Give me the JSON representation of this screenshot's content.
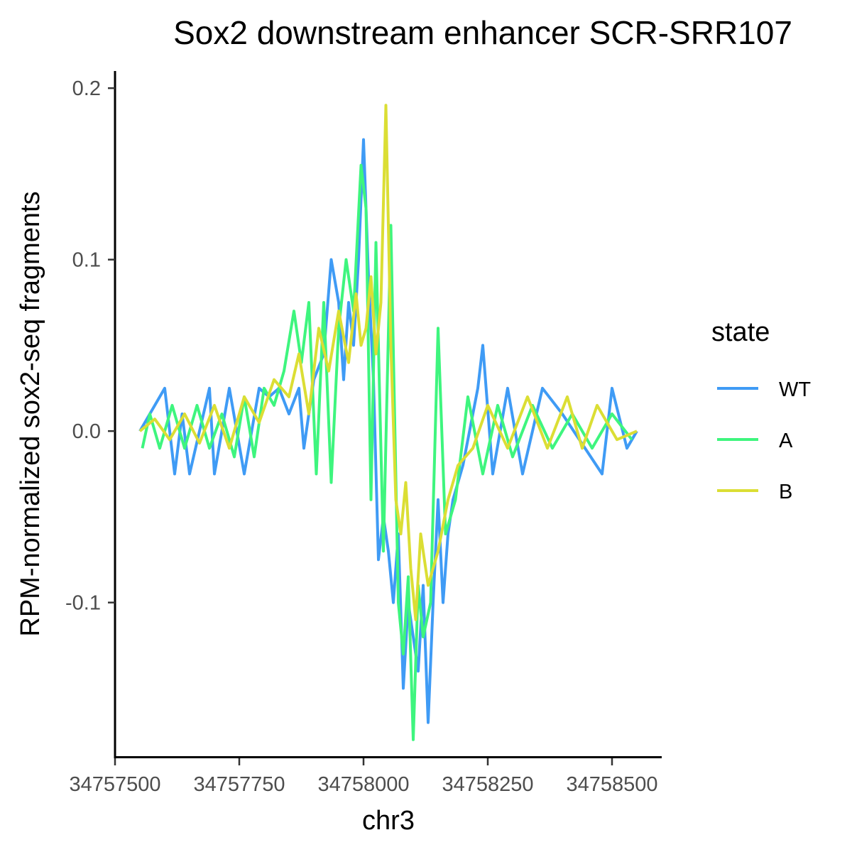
{
  "chart_data": {
    "type": "line",
    "title": "Sox2 downstream enhancer SCR-SRR107",
    "xlabel": "chr3",
    "ylabel": "RPM-normalized sox2-seq fragments",
    "xlim": [
      34757500,
      34758600
    ],
    "ylim": [
      -0.19,
      0.21
    ],
    "x_ticks": [
      {
        "value": 34757500,
        "label": "34757500"
      },
      {
        "value": 34757750,
        "label": "34757750"
      },
      {
        "value": 34758000,
        "label": "34758000"
      },
      {
        "value": 34758250,
        "label": "34758250"
      },
      {
        "value": 34758500,
        "label": "34758500"
      }
    ],
    "y_ticks": [
      {
        "value": 0.2,
        "label": "0.2"
      },
      {
        "value": 0.1,
        "label": "0.1"
      },
      {
        "value": 0.0,
        "label": "0.0"
      },
      {
        "value": -0.1,
        "label": "-0.1"
      }
    ],
    "grid": false,
    "legend": {
      "title": "state",
      "placement": "right"
    },
    "series": [
      {
        "name": "WT",
        "color": "#3F9BF5",
        "x": [
          34757550,
          34757600,
          34757620,
          34757635,
          34757650,
          34757690,
          34757700,
          34757730,
          34757760,
          34757790,
          34757810,
          34757830,
          34757850,
          34757870,
          34757880,
          34757900,
          34757920,
          34757935,
          34757950,
          34757960,
          34757970,
          34757980,
          34757990,
          34758000,
          34758010,
          34758020,
          34758030,
          34758040,
          34758050,
          34758060,
          34758070,
          34758080,
          34758090,
          34758100,
          34758110,
          34758120,
          34758130,
          34758140,
          34758150,
          34758160,
          34758170,
          34758180,
          34758200,
          34758230,
          34758240,
          34758260,
          34758290,
          34758320,
          34758360,
          34758400,
          34758480,
          34758500,
          34758530,
          34758550
        ],
        "y": [
          0,
          0.025,
          -0.025,
          0.01,
          -0.025,
          0.025,
          -0.025,
          0.025,
          -0.025,
          0.025,
          0.02,
          0.025,
          0.01,
          0.025,
          -0.01,
          0.03,
          0.045,
          0.1,
          0.075,
          0.03,
          0.075,
          0.05,
          0.1,
          0.17,
          0.09,
          0.03,
          -0.075,
          -0.05,
          -0.07,
          -0.1,
          -0.06,
          -0.15,
          -0.1,
          -0.12,
          -0.14,
          -0.09,
          -0.17,
          -0.1,
          -0.04,
          -0.1,
          -0.06,
          -0.04,
          -0.02,
          0.025,
          0.05,
          -0.025,
          0.025,
          -0.025,
          0.025,
          0.01,
          -0.025,
          0.025,
          -0.01,
          0
        ]
      },
      {
        "name": "A",
        "color": "#3EF57E",
        "x": [
          34757555,
          34757570,
          34757590,
          34757615,
          34757640,
          34757665,
          34757690,
          34757715,
          34757740,
          34757760,
          34757780,
          34757800,
          34757820,
          34757840,
          34757860,
          34757875,
          34757890,
          34757905,
          34757920,
          34757935,
          34757950,
          34757965,
          34757980,
          34757995,
          34758005,
          34758015,
          34758025,
          34758040,
          34758055,
          34758070,
          34758080,
          34758090,
          34758100,
          34758110,
          34758120,
          34758135,
          34758150,
          34758165,
          34758185,
          34758210,
          34758240,
          34758270,
          34758300,
          34758340,
          34758380,
          34758420,
          34758460,
          34758500,
          34758540
        ],
        "y": [
          -0.01,
          0.01,
          -0.01,
          0.015,
          -0.01,
          0.015,
          -0.01,
          0.01,
          -0.015,
          0.02,
          -0.015,
          0.025,
          0.015,
          0.035,
          0.07,
          0.04,
          0.075,
          -0.025,
          0.075,
          -0.03,
          0.06,
          0.1,
          0.07,
          0.155,
          0.13,
          -0.04,
          0.11,
          -0.07,
          0.12,
          -0.1,
          -0.13,
          -0.085,
          -0.18,
          -0.09,
          -0.12,
          -0.1,
          0.06,
          -0.06,
          -0.04,
          0.02,
          -0.025,
          0.015,
          -0.015,
          0.015,
          -0.01,
          0.01,
          -0.01,
          0.01,
          -0.005
        ]
      },
      {
        "name": "B",
        "color": "#DBDE34",
        "x": [
          34757550,
          34757580,
          34757610,
          34757640,
          34757670,
          34757700,
          34757730,
          34757760,
          34757790,
          34757820,
          34757850,
          34757870,
          34757890,
          34757910,
          34757930,
          34757950,
          34757970,
          34757985,
          34757995,
          34758005,
          34758015,
          34758025,
          34758035,
          34758045,
          34758055,
          34758065,
          34758075,
          34758085,
          34758095,
          34758105,
          34758115,
          34758130,
          34758150,
          34758170,
          34758190,
          34758220,
          34758250,
          34758290,
          34758330,
          34758370,
          34758410,
          34758440,
          34758470,
          34758510,
          34758550
        ],
        "y": [
          0,
          0.007,
          -0.005,
          0.01,
          -0.007,
          0.015,
          -0.01,
          0.02,
          0.005,
          0.03,
          0.02,
          0.045,
          0.01,
          0.06,
          0.035,
          0.07,
          0.04,
          0.08,
          0.05,
          0.06,
          0.09,
          0.045,
          0.075,
          0.19,
          0.05,
          -0.04,
          -0.06,
          -0.03,
          -0.08,
          -0.11,
          -0.06,
          -0.09,
          -0.07,
          -0.04,
          -0.02,
          -0.01,
          0.015,
          -0.01,
          0.02,
          -0.01,
          0.02,
          -0.01,
          0.015,
          -0.005,
          0
        ]
      }
    ]
  }
}
